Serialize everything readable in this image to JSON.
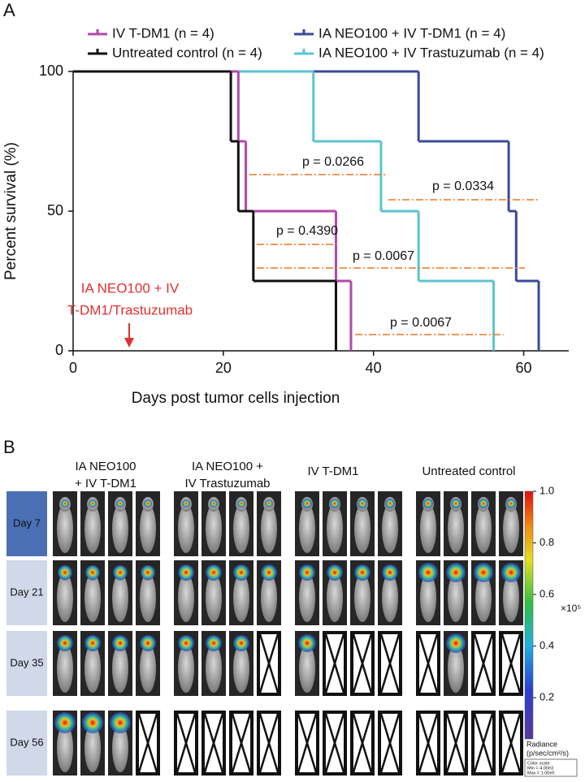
{
  "chart_data": {
    "type": "survival",
    "panel_label": "A",
    "x_label": "Days post tumor cells injection",
    "y_label": "Percent survival (%)",
    "xlim": [
      0,
      66
    ],
    "xticks": [
      0,
      20,
      40,
      60
    ],
    "ylim": [
      0,
      100
    ],
    "yticks": [
      0,
      50,
      100
    ],
    "series": [
      {
        "name": "IV T-DM1 (n = 4)",
        "color": "#b04aa8",
        "x": [
          0,
          22,
          23,
          35,
          37
        ],
        "values": [
          100,
          75,
          50,
          25,
          0
        ]
      },
      {
        "name": "Untreated control (n = 4)",
        "color": "#111111",
        "x": [
          0,
          21,
          22,
          24,
          35
        ],
        "values": [
          100,
          75,
          50,
          25,
          0
        ]
      },
      {
        "name": "IA NEO100 + IV T-DM1 (n = 4)",
        "color": "#3a4a9a",
        "x": [
          0,
          46,
          58,
          59,
          62
        ],
        "values": [
          100,
          75,
          50,
          25,
          0
        ]
      },
      {
        "name": "IA NEO100 + IV Trastuzumab (n = 4)",
        "color": "#5bc4d0",
        "x": [
          0,
          32,
          41,
          46,
          56
        ],
        "values": [
          100,
          75,
          50,
          25,
          0
        ]
      }
    ],
    "p_values": [
      "p = 0.0266",
      "p = 0.0334",
      "p = 0.4390",
      "p = 0.0067",
      "p = 0.0067"
    ],
    "treatment_note": [
      "IA NEO100 + IV",
      "T-DM1/Trastuzumab"
    ]
  },
  "panel_b": {
    "panel_label": "B",
    "groups": [
      [
        "IA NEO100",
        "+ IV T-DM1"
      ],
      [
        "IA NEO100 +",
        "IV Trastuzumab"
      ],
      [
        "IV T-DM1"
      ],
      [
        "Untreated control"
      ]
    ],
    "rows": [
      "Day 7",
      "Day 21",
      "Day 35",
      "Day 56"
    ],
    "colorbar": {
      "clim": [
        0.04,
        1.0
      ],
      "ticks": [
        {
          "value": 1.0,
          "label": "1.0"
        },
        0.8,
        0.6,
        0.4,
        0.2
      ],
      "multiplier": "×10⁵",
      "label": [
        "Radiance",
        "(p/sec/cm²/s)"
      ],
      "scale_box": [
        "Color scale",
        "Min = 4.00e3",
        "Max = 1.00e5"
      ]
    }
  }
}
